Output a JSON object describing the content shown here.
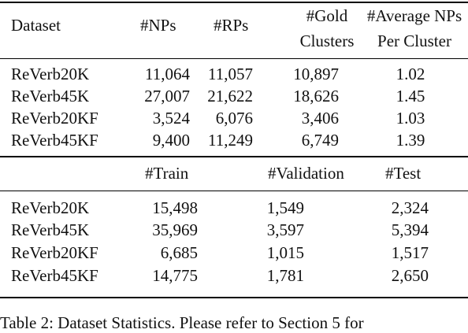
{
  "table": {
    "top": {
      "header": {
        "dataset": "Dataset",
        "nps": "#NPs",
        "rps": "#RPs",
        "gold_1": "#Gold",
        "gold_2": "Clusters",
        "avg_1": "#Average NPs",
        "avg_2": "Per Cluster"
      },
      "rows": [
        {
          "dataset": "ReVerb20K",
          "nps": "11,064",
          "rps": "11,057",
          "gold": "10,897",
          "avg": "1.02"
        },
        {
          "dataset": "ReVerb45K",
          "nps": "27,007",
          "rps": "21,622",
          "gold": "18,626",
          "avg": "1.45"
        },
        {
          "dataset": "ReVerb20KF",
          "nps": "3,524",
          "rps": "6,076",
          "gold": "3,406",
          "avg": "1.03"
        },
        {
          "dataset": "ReVerb45KF",
          "nps": "9,400",
          "rps": "11,249",
          "gold": "6,749",
          "avg": "1.39"
        }
      ]
    },
    "bottom": {
      "header": {
        "train": "#Train",
        "validation": "#Validation",
        "test": "#Test"
      },
      "rows": [
        {
          "dataset": "ReVerb20K",
          "train": "15,498",
          "validation": "1,549",
          "test": "2,324"
        },
        {
          "dataset": "ReVerb45K",
          "train": "35,969",
          "validation": "3,597",
          "test": "5,394"
        },
        {
          "dataset": "ReVerb20KF",
          "train": "6,685",
          "validation": "1,015",
          "test": "1,517"
        },
        {
          "dataset": "ReVerb45KF",
          "train": "14,775",
          "validation": "1,781",
          "test": "2,650"
        }
      ]
    }
  },
  "caption": "Table 2: Dataset Statistics. Please refer to Section 5 for"
}
